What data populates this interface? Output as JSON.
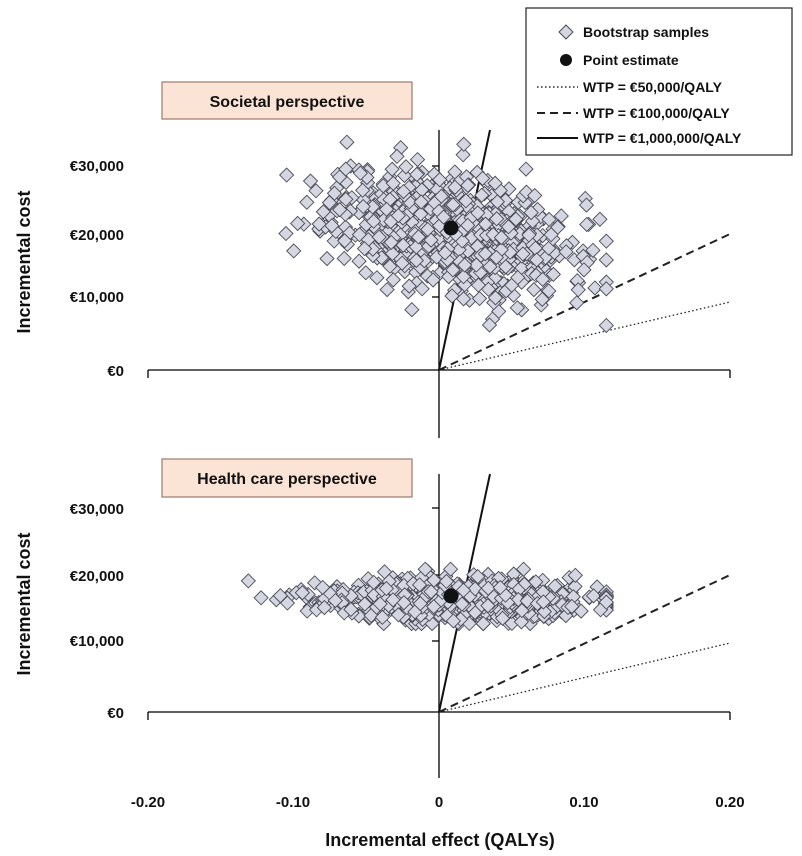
{
  "chart_data": [
    {
      "type": "scatter",
      "panel_title": "Societal perspective",
      "ylabel": "Incremental cost",
      "xlim": [
        -0.2,
        0.2
      ],
      "ylim": [
        -10000,
        35000
      ],
      "y_ticks": [
        0,
        10000,
        20000,
        30000
      ],
      "y_tick_labels": [
        "€0",
        "€10,000",
        "€20,000",
        "€30,000"
      ],
      "point_estimate": {
        "x": 0.008,
        "y": 21000
      },
      "bootstrap": {
        "n": 800,
        "x_mean": 0.008,
        "x_sd": 0.04,
        "y_mean": 20500,
        "y_sd": 4500,
        "corr": -0.35,
        "x_range": [
          -0.135,
          0.115
        ],
        "y_range": [
          4500,
          33500
        ],
        "seed": 11
      },
      "wtp_lines": [
        50000,
        100000,
        1000000
      ]
    },
    {
      "type": "scatter",
      "panel_title": "Health care perspective",
      "ylabel": "Incremental cost",
      "xlabel": "Incremental effect (QALYs)",
      "xlim": [
        -0.2,
        0.2
      ],
      "ylim": [
        -10000,
        35000
      ],
      "x_ticks": [
        -0.2,
        -0.1,
        0,
        0.1,
        0.2
      ],
      "x_tick_labels": [
        "-0.20",
        "-0.10",
        "0",
        "0.10",
        "0.20"
      ],
      "y_ticks": [
        0,
        10000,
        20000,
        30000
      ],
      "y_tick_labels": [
        "€0",
        "€10,000",
        "€20,000",
        "€30,000"
      ],
      "point_estimate": {
        "x": 0.008,
        "y": 16800
      },
      "bootstrap": {
        "n": 800,
        "x_mean": 0.01,
        "x_sd": 0.045,
        "y_mean": 16500,
        "y_sd": 1500,
        "corr": -0.1,
        "x_range": [
          -0.135,
          0.115
        ],
        "y_range": [
          13000,
          21000
        ],
        "seed": 23
      },
      "wtp_lines": [
        50000,
        100000,
        1000000
      ]
    }
  ],
  "legend": {
    "position": "top-right",
    "items": [
      {
        "label": "Bootstrap samples",
        "marker": "diamond"
      },
      {
        "label": "Point estimate",
        "marker": "circle"
      },
      {
        "label": "WTP = €50,000/QALY",
        "marker": "dotted-line"
      },
      {
        "label": "WTP = €100,000/QALY",
        "marker": "dashed-line"
      },
      {
        "label": "WTP = €1,000,000/QALY",
        "marker": "solid-line"
      }
    ]
  },
  "colors": {
    "diamond_fill": "#d4d6e2",
    "diamond_stroke": "#4a4a56",
    "point_estimate": "#111111",
    "title_box_fill": "#fbe3d6",
    "title_box_stroke": "#9a7a6a",
    "axis": "#000000"
  }
}
